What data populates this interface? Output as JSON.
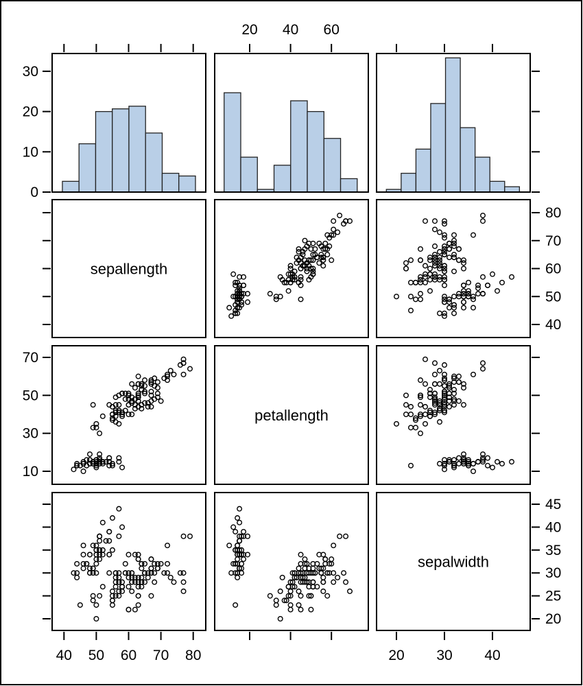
{
  "chart_data": {
    "type": "scatter-matrix",
    "variables": [
      "sepallength",
      "petallength",
      "sepalwidth"
    ],
    "axes": {
      "sepallength": {
        "range": [
          36,
          84
        ],
        "ticks": [
          40,
          50,
          60,
          70,
          80
        ]
      },
      "petallength": {
        "range": [
          4,
          76
        ],
        "ticks": [
          20,
          40,
          60
        ]
      },
      "sepalwidth": {
        "range": [
          16,
          48
        ],
        "ticks": [
          20,
          30,
          40
        ]
      },
      "percent": {
        "range": [
          0,
          34
        ],
        "ticks": [
          0,
          10,
          20,
          30
        ]
      },
      "sepallength_row": {
        "ticks": [
          40,
          50,
          60,
          70,
          80
        ]
      },
      "petallength_row": {
        "ticks": [
          10,
          30,
          50,
          70
        ]
      },
      "sepalwidth_row": {
        "ticks": [
          20,
          25,
          30,
          35,
          40,
          45
        ]
      }
    },
    "histograms": {
      "sepallength": {
        "start": 39.5,
        "width": 5.15,
        "values": [
          2.67,
          12,
          20,
          20.67,
          21.33,
          14.67,
          4.67,
          4
        ]
      },
      "petallength": {
        "start": 7.5,
        "width": 8.14,
        "values": [
          24.67,
          8.67,
          0.67,
          6.67,
          22.67,
          20,
          13.33,
          3.33
        ]
      },
      "sepalwidth": {
        "start": 17.9,
        "width": 3.08,
        "values": [
          0.67,
          4.67,
          10.67,
          22,
          33.33,
          16,
          8.67,
          2.67,
          1.33
        ]
      }
    },
    "histogram_color": "#b9cfe7",
    "points_columns": [
      "sepallength",
      "petallength",
      "sepalwidth"
    ],
    "points": [
      [
        51,
        14,
        35
      ],
      [
        49,
        14,
        30
      ],
      [
        47,
        13,
        32
      ],
      [
        46,
        15,
        31
      ],
      [
        50,
        14,
        36
      ],
      [
        54,
        17,
        39
      ],
      [
        46,
        14,
        34
      ],
      [
        50,
        15,
        34
      ],
      [
        44,
        14,
        29
      ],
      [
        49,
        15,
        31
      ],
      [
        54,
        15,
        37
      ],
      [
        48,
        16,
        34
      ],
      [
        48,
        14,
        30
      ],
      [
        43,
        11,
        30
      ],
      [
        58,
        12,
        40
      ],
      [
        57,
        15,
        44
      ],
      [
        54,
        13,
        39
      ],
      [
        51,
        14,
        35
      ],
      [
        57,
        17,
        38
      ],
      [
        51,
        15,
        38
      ],
      [
        54,
        17,
        34
      ],
      [
        51,
        15,
        37
      ],
      [
        46,
        10,
        36
      ],
      [
        51,
        17,
        33
      ],
      [
        48,
        19,
        34
      ],
      [
        50,
        16,
        30
      ],
      [
        50,
        16,
        34
      ],
      [
        52,
        15,
        35
      ],
      [
        52,
        14,
        34
      ],
      [
        47,
        16,
        32
      ],
      [
        48,
        16,
        31
      ],
      [
        54,
        15,
        34
      ],
      [
        52,
        15,
        41
      ],
      [
        55,
        14,
        42
      ],
      [
        49,
        15,
        31
      ],
      [
        50,
        12,
        32
      ],
      [
        55,
        13,
        35
      ],
      [
        49,
        14,
        36
      ],
      [
        44,
        13,
        30
      ],
      [
        51,
        15,
        34
      ],
      [
        50,
        13,
        35
      ],
      [
        45,
        13,
        23
      ],
      [
        44,
        13,
        32
      ],
      [
        50,
        16,
        35
      ],
      [
        51,
        19,
        38
      ],
      [
        48,
        14,
        30
      ],
      [
        51,
        16,
        38
      ],
      [
        46,
        14,
        32
      ],
      [
        53,
        15,
        37
      ],
      [
        50,
        14,
        33
      ],
      [
        70,
        47,
        32
      ],
      [
        64,
        45,
        32
      ],
      [
        69,
        49,
        31
      ],
      [
        55,
        40,
        23
      ],
      [
        65,
        46,
        28
      ],
      [
        57,
        45,
        28
      ],
      [
        63,
        47,
        33
      ],
      [
        49,
        33,
        24
      ],
      [
        66,
        46,
        29
      ],
      [
        52,
        39,
        27
      ],
      [
        50,
        35,
        20
      ],
      [
        59,
        42,
        30
      ],
      [
        60,
        40,
        22
      ],
      [
        61,
        47,
        29
      ],
      [
        56,
        36,
        29
      ],
      [
        67,
        44,
        31
      ],
      [
        56,
        45,
        30
      ],
      [
        58,
        41,
        27
      ],
      [
        62,
        45,
        22
      ],
      [
        56,
        39,
        25
      ],
      [
        59,
        48,
        32
      ],
      [
        61,
        40,
        28
      ],
      [
        63,
        49,
        25
      ],
      [
        61,
        47,
        28
      ],
      [
        64,
        43,
        29
      ],
      [
        66,
        44,
        30
      ],
      [
        68,
        48,
        28
      ],
      [
        67,
        50,
        30
      ],
      [
        60,
        45,
        29
      ],
      [
        57,
        35,
        26
      ],
      [
        55,
        38,
        24
      ],
      [
        55,
        37,
        24
      ],
      [
        58,
        39,
        27
      ],
      [
        60,
        51,
        27
      ],
      [
        54,
        45,
        30
      ],
      [
        60,
        45,
        34
      ],
      [
        67,
        47,
        31
      ],
      [
        63,
        44,
        23
      ],
      [
        56,
        41,
        30
      ],
      [
        55,
        40,
        25
      ],
      [
        55,
        44,
        26
      ],
      [
        61,
        46,
        30
      ],
      [
        58,
        40,
        26
      ],
      [
        50,
        33,
        23
      ],
      [
        56,
        42,
        27
      ],
      [
        57,
        42,
        30
      ],
      [
        57,
        42,
        29
      ],
      [
        62,
        43,
        29
      ],
      [
        51,
        30,
        25
      ],
      [
        57,
        41,
        28
      ],
      [
        63,
        60,
        33
      ],
      [
        58,
        51,
        27
      ],
      [
        71,
        59,
        30
      ],
      [
        63,
        56,
        29
      ],
      [
        65,
        58,
        30
      ],
      [
        76,
        66,
        30
      ],
      [
        49,
        45,
        25
      ],
      [
        73,
        63,
        29
      ],
      [
        67,
        58,
        25
      ],
      [
        72,
        61,
        36
      ],
      [
        65,
        51,
        32
      ],
      [
        64,
        53,
        27
      ],
      [
        68,
        55,
        30
      ],
      [
        57,
        50,
        25
      ],
      [
        58,
        51,
        28
      ],
      [
        64,
        53,
        32
      ],
      [
        65,
        55,
        30
      ],
      [
        77,
        67,
        38
      ],
      [
        77,
        69,
        26
      ],
      [
        60,
        50,
        22
      ],
      [
        69,
        57,
        32
      ],
      [
        56,
        49,
        28
      ],
      [
        77,
        67,
        28
      ],
      [
        63,
        49,
        27
      ],
      [
        67,
        57,
        33
      ],
      [
        72,
        60,
        32
      ],
      [
        62,
        48,
        28
      ],
      [
        61,
        49,
        30
      ],
      [
        64,
        56,
        28
      ],
      [
        72,
        58,
        30
      ],
      [
        74,
        61,
        28
      ],
      [
        79,
        64,
        38
      ],
      [
        64,
        56,
        28
      ],
      [
        63,
        51,
        28
      ],
      [
        61,
        56,
        26
      ],
      [
        77,
        61,
        30
      ],
      [
        63,
        56,
        34
      ],
      [
        64,
        55,
        31
      ],
      [
        60,
        48,
        30
      ],
      [
        69,
        54,
        31
      ],
      [
        67,
        56,
        31
      ],
      [
        69,
        51,
        31
      ],
      [
        58,
        51,
        27
      ],
      [
        68,
        59,
        32
      ],
      [
        67,
        57,
        33
      ],
      [
        67,
        52,
        30
      ],
      [
        63,
        50,
        25
      ],
      [
        65,
        52,
        30
      ],
      [
        62,
        54,
        34
      ],
      [
        59,
        51,
        30
      ]
    ]
  }
}
